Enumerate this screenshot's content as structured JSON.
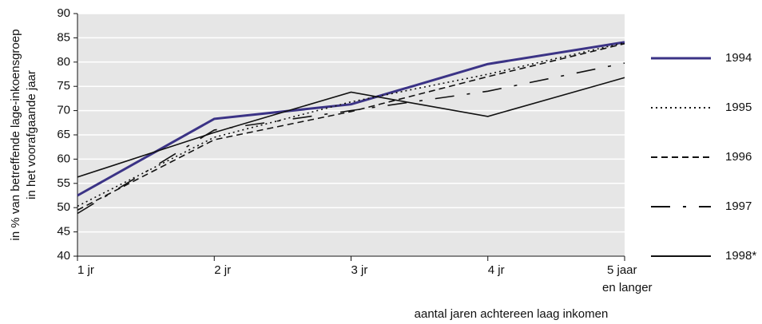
{
  "chart_data": {
    "type": "line",
    "y_label": [
      "in % van betreffende lage-inkoensgroep",
      "in het voorafgaande jaar"
    ],
    "x_label": "aantal jaren achtereen laag inkomen",
    "categories": [
      "1 jr",
      "2 jr",
      "3 jr",
      "4 jr",
      "5 jaar\nen langer"
    ],
    "ylim": [
      40,
      90
    ],
    "yticks": [
      40,
      45,
      50,
      55,
      60,
      65,
      70,
      75,
      80,
      85,
      90
    ],
    "grid": true,
    "legend": "right",
    "series": [
      {
        "name": "1994",
        "color": "#3b3386",
        "dash": "none",
        "values": [
          52.5,
          68.3,
          71.3,
          79.6,
          84.1
        ]
      },
      {
        "name": "1995",
        "color": "#111111",
        "dash": "2,4",
        "values": [
          50.3,
          64.5,
          71.8,
          77.5,
          84.0
        ]
      },
      {
        "name": "1996",
        "color": "#111111",
        "dash": "8,5",
        "values": [
          49.5,
          64.0,
          69.8,
          77.0,
          83.8
        ]
      },
      {
        "name": "1997",
        "color": "#111111",
        "dash": "24,16,4,16",
        "values": [
          48.8,
          66.0,
          70.0,
          74.0,
          79.8
        ]
      },
      {
        "name": "1998*",
        "color": "#111111",
        "dash": "none",
        "values": [
          56.3,
          65.5,
          73.8,
          68.8,
          76.8
        ]
      }
    ]
  }
}
